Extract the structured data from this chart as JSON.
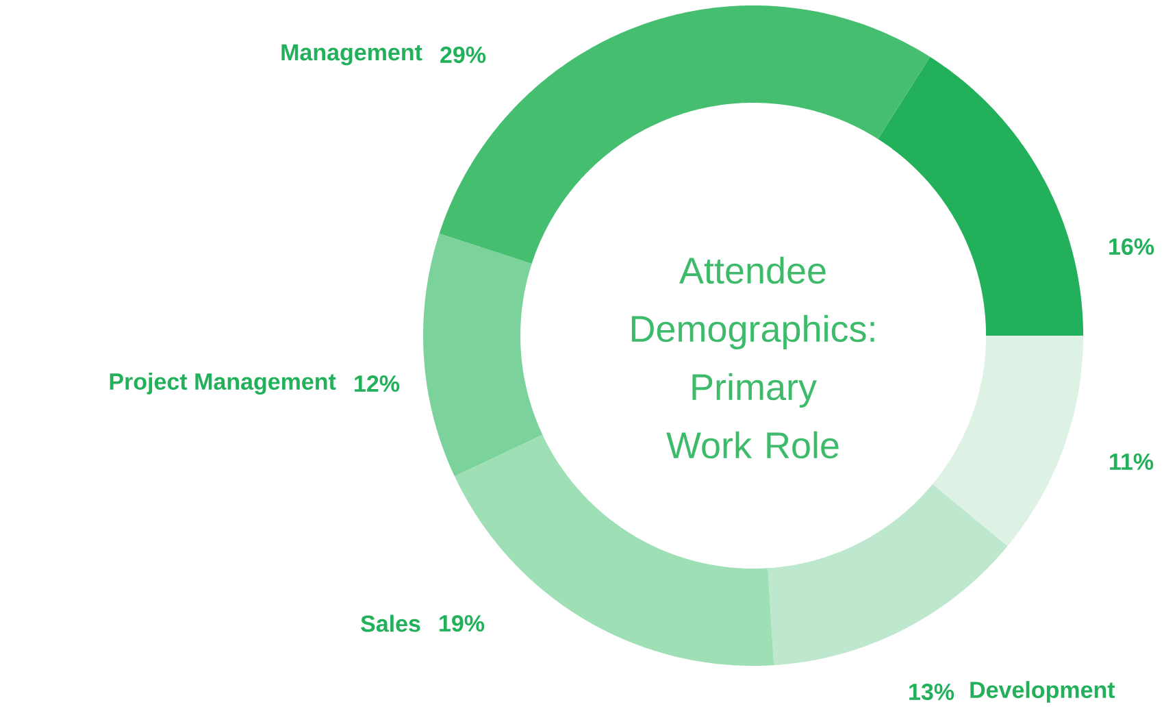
{
  "chart_data": {
    "type": "donut",
    "title": "Attendee Demographics: Primary Work Role",
    "categories": [
      null,
      null,
      "Development",
      "Sales",
      "Project Management",
      "Management"
    ],
    "values": [
      16,
      11,
      13,
      19,
      12,
      29
    ],
    "value_labels": [
      "16%",
      "11%",
      "13%",
      "19%",
      "12%",
      "29%"
    ],
    "colors": [
      "#22b05a",
      "#ddf2e4",
      "#bde8cd",
      "#9edfb5",
      "#7bd39b",
      "#45bf6f"
    ]
  }
}
